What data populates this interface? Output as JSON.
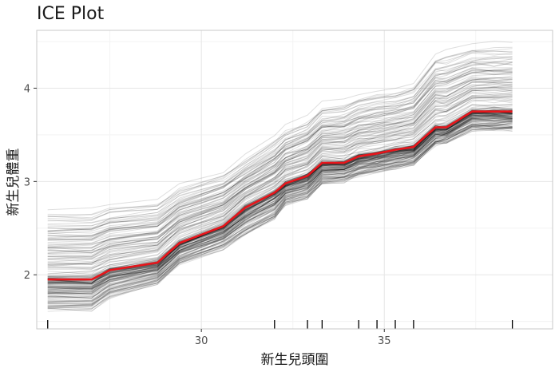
{
  "chart_data": {
    "type": "line",
    "title": "ICE Plot",
    "xlabel": "新生兒頭圍",
    "ylabel": "新生兒體重",
    "xlim": [
      25.5,
      39.6
    ],
    "ylim": [
      1.42,
      4.62
    ],
    "xticks": [
      30,
      35
    ],
    "yticks": [
      2,
      3,
      4
    ],
    "grid": true,
    "legend": "none",
    "x": [
      25.8,
      27.0,
      27.5,
      28.8,
      29.4,
      30.6,
      31.2,
      32.0,
      32.3,
      32.9,
      33.3,
      33.9,
      34.3,
      34.8,
      35.3,
      35.8,
      36.4,
      36.7,
      37.4,
      38.0,
      38.5
    ],
    "series": [
      {
        "values": [
          1.95,
          1.95,
          2.05,
          2.13,
          2.34,
          2.52,
          2.72,
          2.88,
          2.98,
          3.06,
          3.2,
          3.2,
          3.27,
          3.3,
          3.34,
          3.37,
          3.58,
          3.58,
          3.75,
          3.75,
          3.75
        ],
        "color": "#e8151b",
        "role": "average"
      }
    ],
    "individual_curves": {
      "color": "#000000",
      "count": 200,
      "lower_envelope": [
        1.62,
        1.62,
        1.76,
        1.9,
        2.12,
        2.28,
        2.43,
        2.6,
        2.75,
        2.82,
        2.98,
        3.0,
        3.06,
        3.1,
        3.14,
        3.18,
        3.4,
        3.42,
        3.55,
        3.55,
        3.55
      ],
      "upper_envelope": [
        2.72,
        2.72,
        2.78,
        2.82,
        2.98,
        3.12,
        3.28,
        3.48,
        3.6,
        3.7,
        3.85,
        3.88,
        3.95,
        4.0,
        4.02,
        4.08,
        4.4,
        4.42,
        4.5,
        4.5,
        4.5
      ]
    },
    "rug": [
      25.8,
      32.0,
      32.9,
      33.3,
      34.3,
      34.8,
      35.3,
      35.8,
      38.5
    ]
  },
  "colors": {
    "panel_border": "#c8c8c8",
    "grid_major": "#e6e6e6",
    "grid_minor": "#f3f3f3",
    "average_line": "#e8151b",
    "rug": "#000000"
  }
}
